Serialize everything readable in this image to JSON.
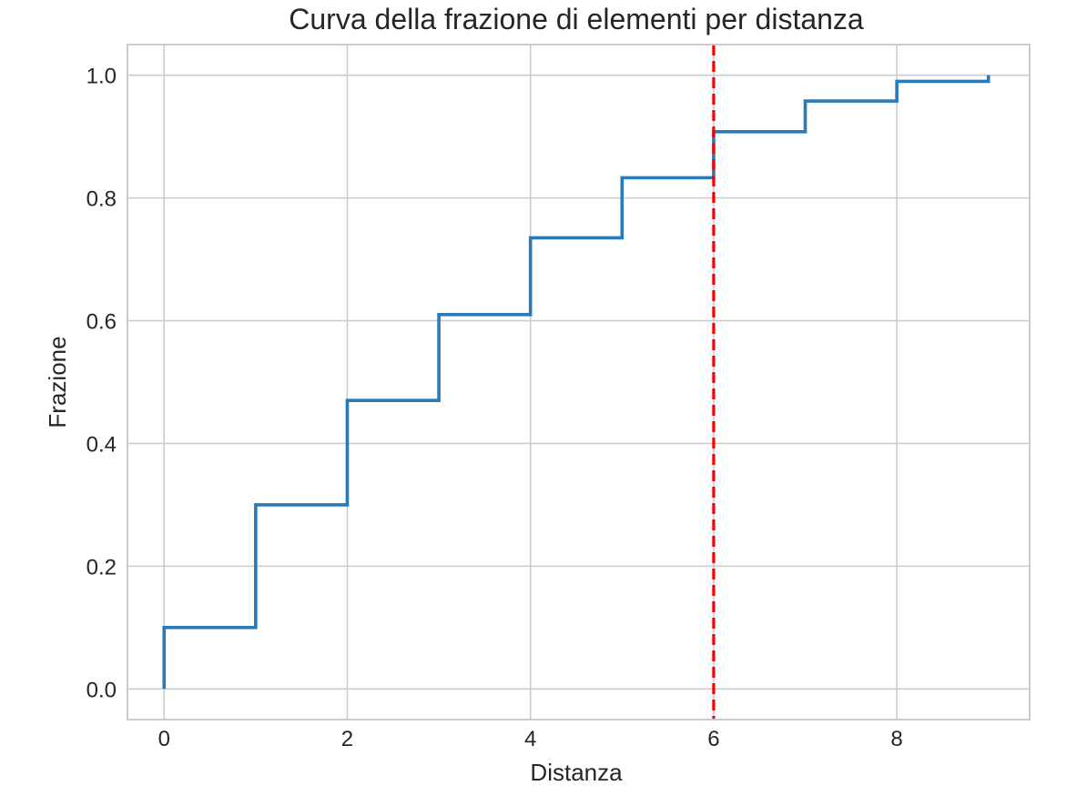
{
  "chart_data": {
    "type": "line",
    "drawstyle": "steps-post",
    "title": "Curva della frazione di elementi per distanza",
    "xlabel": "Distanza",
    "ylabel": "Frazione",
    "xlim": [
      -0.4,
      9.45
    ],
    "ylim": [
      -0.05,
      1.05
    ],
    "xticks": [
      0,
      2,
      4,
      6,
      8
    ],
    "xtick_labels": [
      "0",
      "2",
      "4",
      "6",
      "8"
    ],
    "yticks": [
      0.0,
      0.2,
      0.4,
      0.6,
      0.8,
      1.0
    ],
    "ytick_labels": [
      "0.0",
      "0.2",
      "0.4",
      "0.6",
      "0.8",
      "1.0"
    ],
    "grid": true,
    "series": [
      {
        "color": "#2a7ab8",
        "x": [
          0,
          0,
          1,
          2,
          3,
          4,
          5,
          6,
          7,
          8,
          9,
          9
        ],
        "y": [
          0.0,
          0.1,
          0.3,
          0.47,
          0.61,
          0.735,
          0.833,
          0.908,
          0.958,
          0.99,
          0.99,
          1.0
        ]
      }
    ],
    "vline": {
      "x": 6,
      "color": "#ff0000",
      "style": "dashed"
    }
  }
}
